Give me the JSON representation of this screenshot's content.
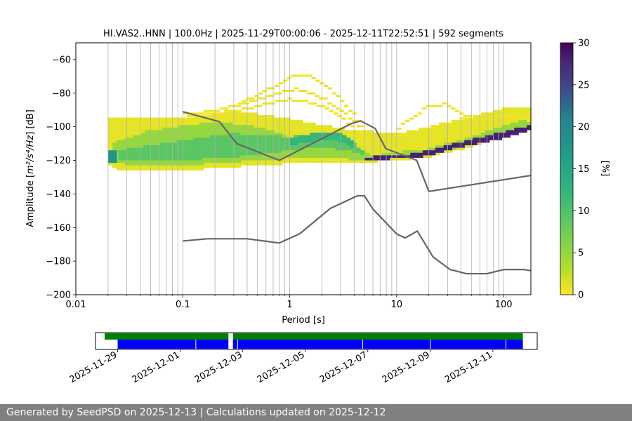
{
  "footer": {
    "text": "Generated by SeedPSD on 2025-12-13 | Calculations updated on 2025-12-12"
  },
  "chart_data": {
    "type": "heatmap",
    "title": "HI.VAS2..HNN | 100.0Hz | 2025-11-29T00:00:06 - 2025-12-11T22:52:51 | 592 segments",
    "xlabel": "Period [s]",
    "ylabel": "Amplitude [m²/s⁴/Hz] [dB]",
    "xscale": "log",
    "xlim": [
      0.01,
      180
    ],
    "ylim": [
      -200,
      -50
    ],
    "x_ticks": [
      {
        "v": 0.01,
        "label": "0.01"
      },
      {
        "v": 0.1,
        "label": "0.1"
      },
      {
        "v": 1,
        "label": "1"
      },
      {
        "v": 10,
        "label": "10"
      },
      {
        "v": 100,
        "label": "100"
      }
    ],
    "y_ticks": [
      {
        "v": -60,
        "label": "−60"
      },
      {
        "v": -80,
        "label": "−80"
      },
      {
        "v": -100,
        "label": "−100"
      },
      {
        "v": -120,
        "label": "−120"
      },
      {
        "v": -140,
        "label": "−140"
      },
      {
        "v": -160,
        "label": "−160"
      },
      {
        "v": -180,
        "label": "−180"
      },
      {
        "v": -200,
        "label": "−200"
      }
    ],
    "grid": true,
    "colorbar": {
      "label": "[%]",
      "range": [
        0,
        30
      ],
      "ticks": [
        {
          "v": 0,
          "label": "0"
        },
        {
          "v": 5,
          "label": "5"
        },
        {
          "v": 10,
          "label": "10"
        },
        {
          "v": 15,
          "label": "15"
        },
        {
          "v": 20,
          "label": "20"
        },
        {
          "v": 25,
          "label": "25"
        },
        {
          "v": 30,
          "label": "30"
        }
      ],
      "colormap": "viridis_r"
    },
    "noise_models": [
      {
        "name": "NHNM",
        "color": "#666666",
        "points": [
          [
            0.1,
            -91
          ],
          [
            0.22,
            -97
          ],
          [
            0.32,
            -110
          ],
          [
            0.8,
            -120
          ],
          [
            3.8,
            -98
          ],
          [
            4.6,
            -96.5
          ],
          [
            6.3,
            -101
          ],
          [
            7.9,
            -113
          ],
          [
            15.4,
            -120
          ],
          [
            20,
            -138.5
          ],
          [
            180,
            -129
          ]
        ]
      },
      {
        "name": "NLNM",
        "color": "#666666",
        "points": [
          [
            0.1,
            -168
          ],
          [
            0.17,
            -166.7
          ],
          [
            0.4,
            -166.7
          ],
          [
            0.8,
            -169.2
          ],
          [
            1.24,
            -163.7
          ],
          [
            2.4,
            -148.6
          ],
          [
            4.3,
            -141.1
          ],
          [
            5,
            -141.1
          ],
          [
            6,
            -149
          ],
          [
            10,
            -163.8
          ],
          [
            12,
            -166.2
          ],
          [
            15.6,
            -162.1
          ],
          [
            21.9,
            -177.5
          ],
          [
            31.6,
            -185
          ],
          [
            45,
            -187.5
          ],
          [
            70,
            -187.5
          ],
          [
            101,
            -185
          ],
          [
            154,
            -185
          ],
          [
            180,
            -185.7
          ]
        ]
      }
    ],
    "density_bands": [
      {
        "x_from": 0.02,
        "x_to": 180,
        "pct": 1,
        "lower": [
          [
            0.02,
            -122
          ],
          [
            0.025,
            -126
          ],
          [
            0.1,
            -126
          ],
          [
            0.3,
            -124
          ],
          [
            1,
            -122
          ],
          [
            3,
            -122
          ],
          [
            10,
            -120
          ],
          [
            20,
            -118
          ],
          [
            50,
            -112
          ],
          [
            100,
            -106
          ],
          [
            180,
            -102
          ]
        ],
        "upper": [
          [
            0.02,
            -95
          ],
          [
            0.1,
            -95
          ],
          [
            0.3,
            -90
          ],
          [
            1,
            -95
          ],
          [
            3,
            -101
          ],
          [
            10,
            -104
          ],
          [
            20,
            -100
          ],
          [
            50,
            -94
          ],
          [
            100,
            -89
          ],
          [
            180,
            -88
          ]
        ]
      },
      {
        "x_from": 0.022,
        "x_to": 180,
        "pct": 5,
        "lower": [
          [
            0.022,
            -120
          ],
          [
            0.03,
            -123
          ],
          [
            0.1,
            -123
          ],
          [
            0.3,
            -121
          ],
          [
            1,
            -119
          ],
          [
            3,
            -119
          ],
          [
            6,
            -120
          ],
          [
            20,
            -117
          ],
          [
            50,
            -111
          ],
          [
            100,
            -106
          ],
          [
            180,
            -101
          ]
        ],
        "upper": [
          [
            0.022,
            -110
          ],
          [
            0.05,
            -102
          ],
          [
            0.2,
            -97
          ],
          [
            0.5,
            -100
          ],
          [
            1,
            -106
          ],
          [
            3,
            -109
          ],
          [
            6,
            -117
          ],
          [
            20,
            -113
          ],
          [
            50,
            -106
          ],
          [
            100,
            -99
          ],
          [
            180,
            -95
          ]
        ]
      },
      {
        "x_from": 0.025,
        "x_to": 5,
        "pct": 9,
        "lower": [
          [
            0.025,
            -120
          ],
          [
            0.1,
            -120
          ],
          [
            0.3,
            -118
          ],
          [
            1,
            -114
          ],
          [
            2,
            -112
          ],
          [
            4,
            -115
          ],
          [
            5,
            -118
          ]
        ],
        "upper": [
          [
            0.025,
            -114
          ],
          [
            0.1,
            -108
          ],
          [
            0.3,
            -104
          ],
          [
            1,
            -106
          ],
          [
            2,
            -104
          ],
          [
            4,
            -110
          ],
          [
            5,
            -115
          ]
        ]
      },
      {
        "x_from": 1,
        "x_to": 4,
        "pct": 12,
        "lower": [
          [
            1,
            -111
          ],
          [
            2,
            -108
          ],
          [
            3,
            -109
          ],
          [
            4,
            -113
          ]
        ],
        "upper": [
          [
            1,
            -107
          ],
          [
            2,
            -103
          ],
          [
            3,
            -104
          ],
          [
            4,
            -109
          ]
        ]
      },
      {
        "x_from": 5,
        "x_to": 180,
        "pct": 28,
        "lower": [
          [
            5,
            -120
          ],
          [
            10,
            -119
          ],
          [
            15,
            -118.5
          ],
          [
            20,
            -117
          ],
          [
            40,
            -112
          ],
          [
            100,
            -107
          ],
          [
            180,
            -102
          ]
        ],
        "upper": [
          [
            5,
            -118
          ],
          [
            10,
            -117
          ],
          [
            15,
            -116
          ],
          [
            20,
            -114
          ],
          [
            40,
            -109
          ],
          [
            100,
            -103
          ],
          [
            180,
            -99
          ]
        ]
      },
      {
        "x_from": 0.02,
        "x_to": 0.024,
        "pct": 18,
        "lower": [
          [
            0.02,
            -122
          ],
          [
            0.024,
            -121
          ]
        ],
        "upper": [
          [
            0.02,
            -113
          ],
          [
            0.024,
            -115
          ]
        ]
      }
    ],
    "sparse_curves": [
      [
        [
          0.1,
          -92
        ],
        [
          0.2,
          -90
        ],
        [
          0.4,
          -85
        ],
        [
          0.7,
          -80
        ],
        [
          1.2,
          -77
        ],
        [
          2,
          -82
        ],
        [
          3,
          -89
        ],
        [
          4,
          -96
        ],
        [
          5,
          -104
        ]
      ],
      [
        [
          0.1,
          -94
        ],
        [
          0.3,
          -90
        ],
        [
          0.6,
          -86
        ],
        [
          1,
          -83
        ],
        [
          1.6,
          -85
        ],
        [
          2.5,
          -90
        ],
        [
          4,
          -100
        ]
      ],
      [
        [
          0.3,
          -87
        ],
        [
          0.6,
          -78
        ],
        [
          0.9,
          -72
        ],
        [
          1.2,
          -68
        ],
        [
          1.6,
          -70
        ],
        [
          2.2,
          -75
        ],
        [
          3,
          -83
        ],
        [
          4,
          -92
        ],
        [
          5,
          -100
        ]
      ],
      [
        [
          10,
          -101
        ],
        [
          14,
          -94
        ],
        [
          20,
          -87
        ],
        [
          28,
          -86
        ],
        [
          40,
          -91
        ],
        [
          60,
          -97
        ]
      ],
      [
        [
          10,
          -105
        ],
        [
          20,
          -100
        ],
        [
          40,
          -95
        ],
        [
          80,
          -93
        ],
        [
          120,
          -93
        ],
        [
          180,
          -96
        ]
      ]
    ],
    "timeline": {
      "x_ticks": [
        "2025-11-29",
        "2025-12-01",
        "2025-12-03",
        "2025-12-05",
        "2025-12-07",
        "2025-12-09",
        "2025-12-11"
      ],
      "green_color": "#008000",
      "blue_color": "#0000ff",
      "green_segments": [
        [
          "2025-11-28T14:00",
          "2025-12-02T13:00"
        ],
        [
          "2025-12-02T16:30",
          "2025-12-11T23:00"
        ]
      ],
      "blue_segments": [
        [
          "2025-11-29T00:00",
          "2025-12-02T13:00"
        ],
        [
          "2025-12-02T16:30",
          "2025-12-11T23:00"
        ]
      ],
      "gaps": [
        "2025-12-01T12:00",
        "2025-12-02T20:00",
        "2025-12-06T20:00",
        "2025-12-09T00:00",
        "2025-12-11T10:00"
      ],
      "range": [
        "2025-11-28T07:00",
        "2025-12-12T10:00"
      ]
    }
  }
}
